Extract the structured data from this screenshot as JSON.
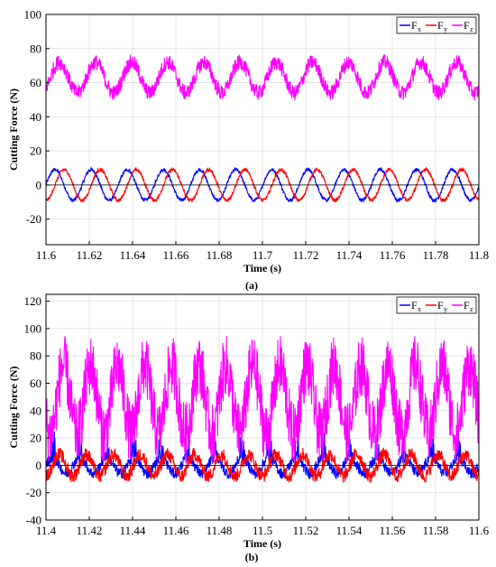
{
  "chart_data": [
    {
      "panel": "(a)",
      "type": "line",
      "xlabel": "Time (s)",
      "ylabel": "Cutting Force (N)",
      "xlim": [
        11.6,
        11.8
      ],
      "ylim": [
        -35,
        100
      ],
      "xticks": [
        "11.6",
        "11.62",
        "11.64",
        "11.66",
        "11.68",
        "11.7",
        "11.72",
        "11.74",
        "11.76",
        "11.78",
        "11.8"
      ],
      "yticks": [
        "-20",
        "0",
        "20",
        "40",
        "60",
        "80",
        "100"
      ],
      "grid": true,
      "legend_position": "top-right",
      "series": [
        {
          "name": "F",
          "subscript": "x",
          "color": "#0000ff",
          "mean": 0,
          "amplitude": 9,
          "period": 0.0167,
          "phase": 0.0,
          "noise": 2,
          "spike": 0
        },
        {
          "name": "F",
          "subscript": "y",
          "color": "#ff0000",
          "mean": 0,
          "amplitude": 9,
          "period": 0.0167,
          "phase": 0.0042,
          "noise": 2,
          "spike": 0
        },
        {
          "name": "F",
          "subscript": "z",
          "color": "#ff00ff",
          "mean": 63,
          "amplitude": 9,
          "period": 0.0167,
          "phase": 0.002,
          "noise": 9,
          "spike": 0
        }
      ],
      "zero_line": true
    },
    {
      "panel": "(b)",
      "type": "line",
      "xlabel": "Time (s)",
      "ylabel": "Cutting Force (N)",
      "xlim": [
        11.4,
        11.6
      ],
      "ylim": [
        -40,
        125
      ],
      "xticks": [
        "11.4",
        "11.42",
        "11.44",
        "11.46",
        "11.48",
        "11.5",
        "11.52",
        "11.54",
        "11.56",
        "11.58",
        "11.6"
      ],
      "yticks": [
        "-40",
        "-20",
        "0",
        "20",
        "40",
        "60",
        "80",
        "100",
        "120"
      ],
      "grid": true,
      "legend_position": "top-right",
      "series": [
        {
          "name": "F",
          "subscript": "x",
          "color": "#0000ff",
          "mean": 0,
          "amplitude": 6,
          "period": 0.0125,
          "phase": 0.0,
          "noise": 8,
          "spike": 16
        },
        {
          "name": "F",
          "subscript": "y",
          "color": "#ff0000",
          "mean": 0,
          "amplitude": 8,
          "period": 0.0125,
          "phase": 0.003,
          "noise": 10,
          "spike": 0
        },
        {
          "name": "F",
          "subscript": "z",
          "color": "#ff00ff",
          "mean": 48,
          "amplitude": 25,
          "period": 0.0125,
          "phase": 0.005,
          "noise": 45,
          "spike": 0
        }
      ],
      "zero_line": true
    }
  ],
  "captions": [
    "(a)",
    "(b)"
  ]
}
